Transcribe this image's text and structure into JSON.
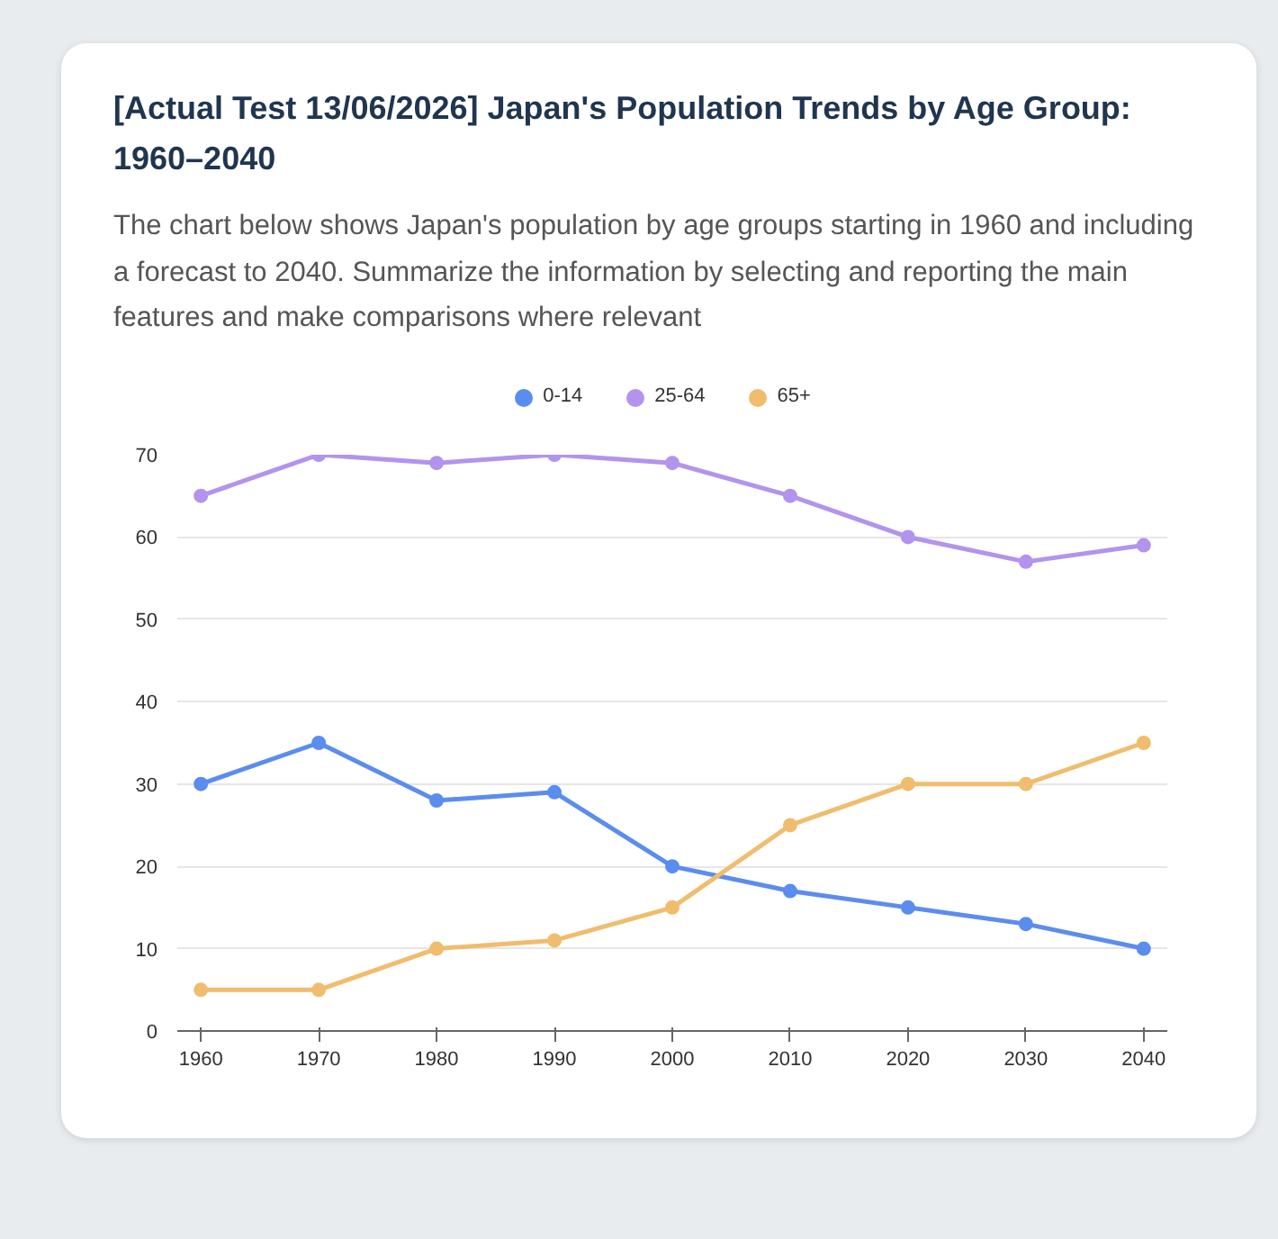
{
  "chart_data": {
    "type": "line",
    "title": "[Actual Test 13/06/2026] Japan's Population Trends by Age Group: 1960–2040",
    "subtitle": "The chart below shows Japan's population by age groups starting in 1960 and including a forecast to 2040. Summarize the information by selecting and reporting the main features and make comparisons where relevant",
    "x": [
      1960,
      1970,
      1980,
      1990,
      2000,
      2010,
      2020,
      2030,
      2040
    ],
    "series": [
      {
        "name": "0-14",
        "color": "#5b8def",
        "values": [
          30,
          35,
          28,
          29,
          20,
          17,
          15,
          13,
          10
        ]
      },
      {
        "name": "25-64",
        "color": "#b294ee",
        "values": [
          65,
          70,
          69,
          70,
          69,
          65,
          60,
          57,
          59
        ]
      },
      {
        "name": "65+",
        "color": "#f0bd6e",
        "values": [
          5,
          5,
          10,
          11,
          15,
          25,
          30,
          30,
          35
        ]
      }
    ],
    "xlim": [
      1958,
      2042
    ],
    "xticks": [
      1960,
      1970,
      1980,
      1990,
      2000,
      2010,
      2020,
      2030,
      2040
    ],
    "ylim": [
      0,
      70
    ],
    "yticks": [
      0,
      10,
      20,
      30,
      40,
      50,
      60,
      70
    ],
    "grid": "y",
    "legend": "top",
    "marker": "circle",
    "line_style": "solid"
  }
}
